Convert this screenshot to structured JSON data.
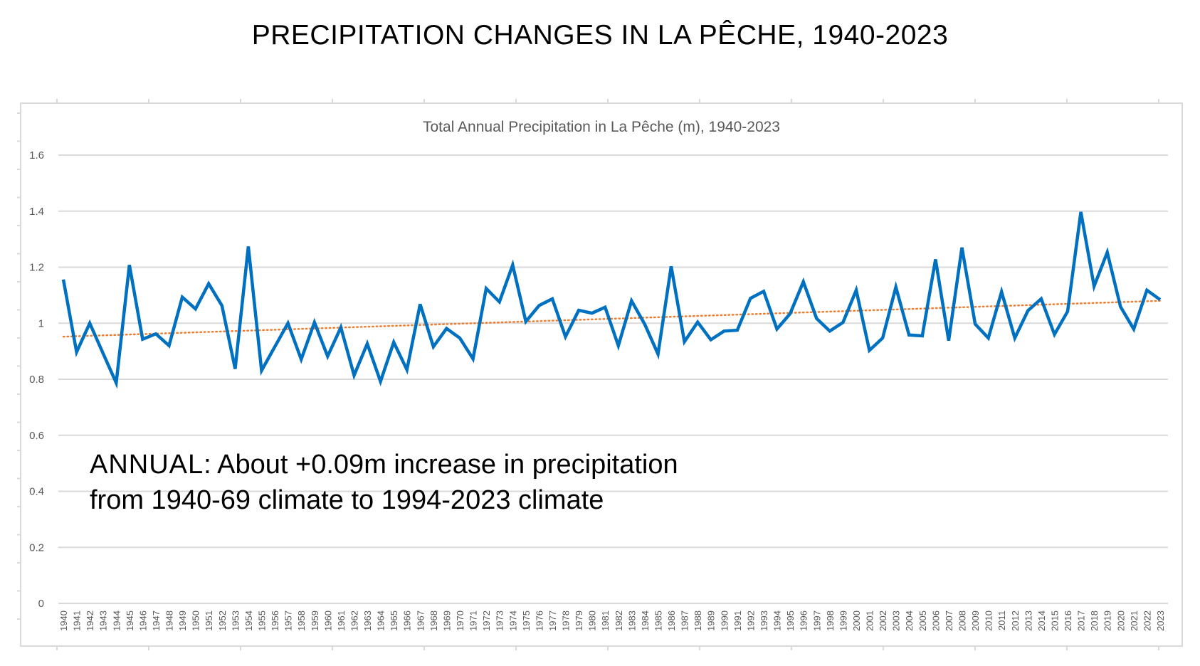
{
  "slide_title": "PRECIPITATION CHANGES IN LA PÊCHE, 1940-2023",
  "annotation": {
    "label": "ANNUAL",
    "line1_rest": ": About +0.09m increase in precipitation",
    "line2": "from 1940-69 climate to 1994-2023 climate"
  },
  "colors": {
    "series": "#0070C0",
    "trend": "#ED7D31",
    "grid": "#D9D9D9",
    "text": "#595959"
  },
  "chart_data": {
    "type": "line",
    "title": "Total Annual Precipitation in La Pêche (m), 1940-2023",
    "xlabel": "",
    "ylabel": "",
    "ylim": [
      0,
      1.6
    ],
    "yticks": [
      "0",
      "0.2",
      "0.4",
      "0.6",
      "0.8",
      "1",
      "1.2",
      "1.4",
      "1.6"
    ],
    "grid": true,
    "x": [
      1940,
      1941,
      1942,
      1943,
      1944,
      1945,
      1946,
      1947,
      1948,
      1949,
      1950,
      1951,
      1952,
      1953,
      1954,
      1955,
      1956,
      1957,
      1958,
      1959,
      1960,
      1961,
      1962,
      1963,
      1964,
      1965,
      1966,
      1967,
      1968,
      1969,
      1970,
      1971,
      1972,
      1973,
      1974,
      1975,
      1976,
      1977,
      1978,
      1979,
      1980,
      1981,
      1982,
      1983,
      1984,
      1985,
      1986,
      1987,
      1988,
      1989,
      1990,
      1991,
      1992,
      1993,
      1994,
      1995,
      1996,
      1997,
      1998,
      1999,
      2000,
      2001,
      2002,
      2003,
      2004,
      2005,
      2006,
      2007,
      2008,
      2009,
      2010,
      2011,
      2012,
      2013,
      2014,
      2015,
      2016,
      2017,
      2018,
      2019,
      2020,
      2021,
      2022,
      2023
    ],
    "series": [
      {
        "name": "Total Annual Precipitation (m)",
        "style": "solid",
        "values": [
          1.156,
          0.897,
          1.0,
          0.893,
          0.787,
          1.208,
          0.943,
          0.962,
          0.92,
          1.093,
          1.051,
          1.141,
          1.063,
          0.837,
          1.274,
          0.831,
          0.916,
          1.0,
          0.871,
          1.003,
          0.882,
          0.985,
          0.814,
          0.927,
          0.792,
          0.932,
          0.834,
          1.068,
          0.916,
          0.981,
          0.947,
          0.873,
          1.124,
          1.076,
          1.208,
          1.006,
          1.063,
          1.087,
          0.952,
          1.046,
          1.036,
          1.057,
          0.92,
          1.08,
          0.996,
          0.89,
          1.203,
          0.934,
          1.004,
          0.941,
          0.972,
          0.975,
          1.089,
          1.114,
          0.979,
          1.034,
          1.148,
          1.017,
          0.972,
          1.003,
          1.118,
          0.903,
          0.947,
          1.129,
          0.958,
          0.955,
          1.228,
          0.938,
          1.27,
          0.997,
          0.947,
          1.112,
          0.947,
          1.045,
          1.087,
          0.96,
          1.042,
          1.397,
          1.132,
          1.253,
          1.059,
          0.979,
          1.118,
          1.084
        ]
      },
      {
        "name": "Linear trend",
        "style": "dotted",
        "start": [
          1940,
          0.952
        ],
        "end": [
          2023,
          1.08
        ]
      }
    ]
  }
}
